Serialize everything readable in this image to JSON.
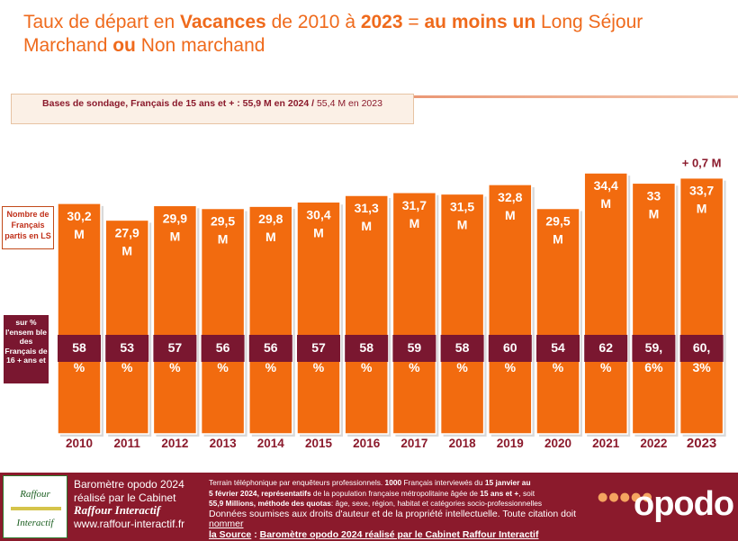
{
  "title": {
    "p1": "Taux de départ en ",
    "p2": "Vacances",
    "p3": " de 2010 à ",
    "p4": "2023",
    "p5": " = ",
    "p6": "au moins un",
    "p7": " Long Séjour",
    "p8": "Marchand ",
    "p9": "ou",
    "p10": " Non marchand"
  },
  "base": {
    "bold": "Bases de sondage, Français de 15 ans et + : 55,9 M en 2024 / ",
    "normal": " 55,4 M en 2023"
  },
  "left_labels": {
    "count_label": "Nombre de Français partis en LS",
    "pct_label": "sur % l'ensem ble des Français de 16 + ans et"
  },
  "chart_data": {
    "type": "bar",
    "categories": [
      "2010",
      "2011",
      "2012",
      "2013",
      "2014",
      "2015",
      "2016",
      "2017",
      "2018",
      "2019",
      "2020",
      "2021",
      "2022",
      "2023"
    ],
    "series": [
      {
        "values": [
          30.2,
          27.9,
          29.9,
          29.5,
          29.8,
          30.4,
          31.3,
          31.7,
          31.5,
          32.8,
          29.5,
          34.4,
          33,
          33.7
        ]
      }
    ],
    "value_labels": [
      [
        "30,2",
        "M"
      ],
      [
        "27,9",
        "M"
      ],
      [
        "29,9",
        "M"
      ],
      [
        "29,5",
        "M"
      ],
      [
        "29,8",
        "M"
      ],
      [
        "30,4",
        "M"
      ],
      [
        "31,3",
        "M"
      ],
      [
        "31,7",
        "M"
      ],
      [
        "31,5",
        "M"
      ],
      [
        "32,8",
        "M"
      ],
      [
        "29,5",
        "M"
      ],
      [
        "34,4",
        "M"
      ],
      [
        "33",
        "M"
      ],
      [
        "33,7",
        "M"
      ]
    ],
    "percentages": [
      58,
      53,
      57,
      56,
      56,
      57,
      58,
      59,
      58,
      60,
      54,
      62,
      59.6,
      60.3
    ],
    "percentage_labels": [
      [
        "58",
        "%"
      ],
      [
        "53",
        "%"
      ],
      [
        "57",
        "%"
      ],
      [
        "56",
        "%"
      ],
      [
        "56",
        "%"
      ],
      [
        "57",
        "%"
      ],
      [
        "58",
        "%"
      ],
      [
        "59",
        "%"
      ],
      [
        "58",
        "%"
      ],
      [
        "60",
        "%"
      ],
      [
        "54",
        "%"
      ],
      [
        "62",
        "%"
      ],
      [
        "59,",
        "6%"
      ],
      [
        "60,",
        "3%"
      ]
    ],
    "annotation": "+ 0,7 M",
    "colors": {
      "bar": "#f26b0f",
      "band": "#7a1730",
      "bar_edge": "#ffffff",
      "year_text": "#8b1a2c"
    }
  },
  "footer": {
    "logo_top": "Raffour",
    "logo_bottom": "Interactif",
    "baro_line1": "Baromètre opodo 2024",
    "baro_line2": "réalisé par le Cabinet",
    "baro_line3": "Raffour Interactif",
    "baro_line4": "www.raffour-interactif.fr",
    "terrain_line1a": "Terrain téléphonique par enquêteurs professionnels. ",
    "terrain_line1b": "1000",
    "terrain_line1c": " Français interviewés du ",
    "terrain_line1d": "15 janvier au",
    "terrain_line2a": "5  février 2024",
    "terrain_line2b": ", représentatifs",
    "terrain_line2c": " de la population française métropolitaine âgée de ",
    "terrain_line2d": "15 ans et +",
    "terrain_line2e": ", soit",
    "terrain_line3a": "55,9 Millions, méthode des quotas",
    "terrain_line3b": ": âge, sexe, région, habitat et catégories socio-professionnelles",
    "terrain_line4a": "Données soumises aux droits d'auteur et de la propriété intellectuelle. ",
    "terrain_line4b": "Toute citation doit ",
    "terrain_line4c": "nommer",
    "terrain_line5a": "la Source",
    "terrain_line5b": " : ",
    "terrain_line5c": "Baromètre opodo 2024 réalisé par le Cabinet Raffour Interactif",
    "opodo_dots": "●●●●●",
    "opodo_word": "opodo"
  }
}
